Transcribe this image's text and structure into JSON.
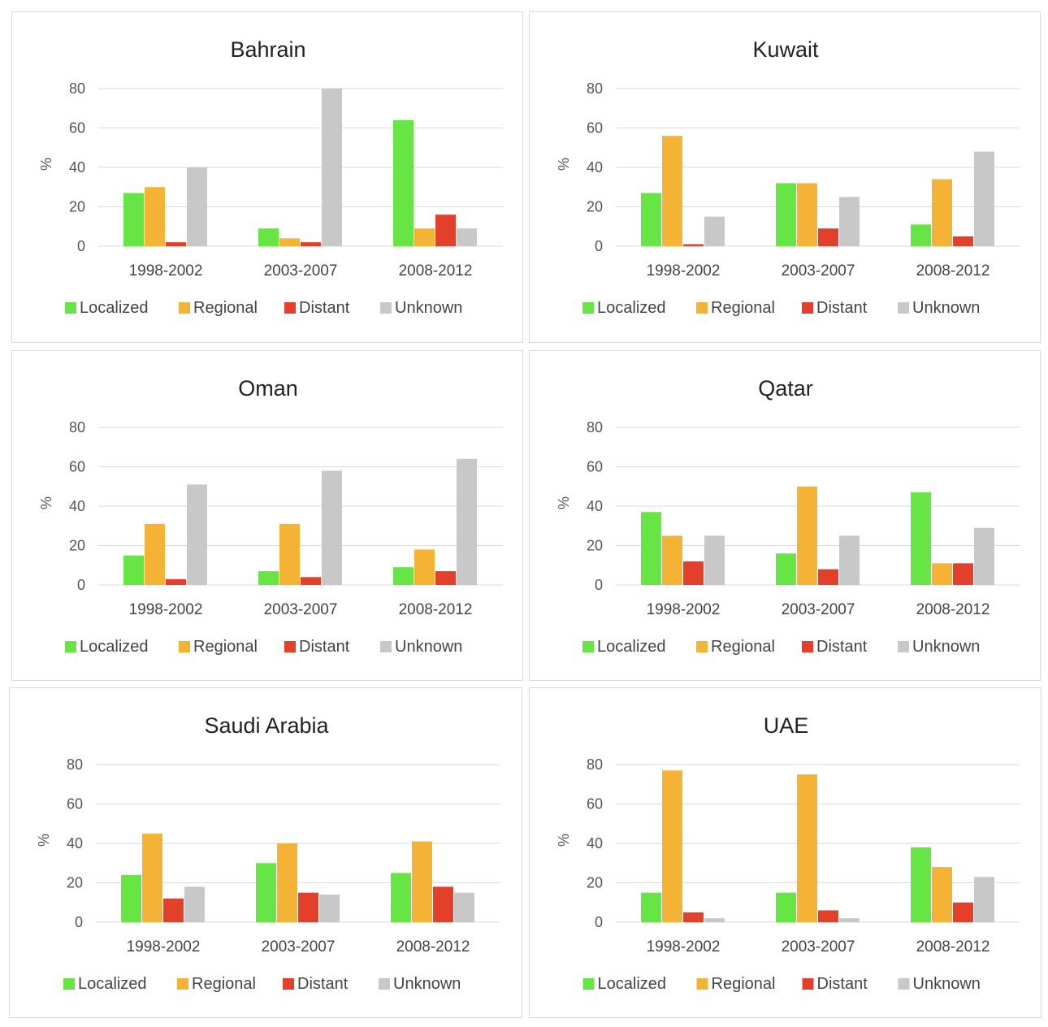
{
  "colors": {
    "Localized": "#66e544",
    "Regional": "#f5b335",
    "Distant": "#e2402a",
    "Unknown": "#c8c8c8"
  },
  "series_names": [
    "Localized",
    "Regional",
    "Distant",
    "Unknown"
  ],
  "chart_data": [
    {
      "type": "bar",
      "title": "Bahrain",
      "ylabel": "%",
      "ylim": [
        0,
        80
      ],
      "yticks": [
        0,
        20,
        40,
        60,
        80
      ],
      "categories": [
        "1998-2002",
        "2003-2007",
        "2008-2012"
      ],
      "series": [
        {
          "name": "Localized",
          "values": [
            27,
            9,
            64
          ]
        },
        {
          "name": "Regional",
          "values": [
            30,
            4,
            9
          ]
        },
        {
          "name": "Distant",
          "values": [
            2,
            2,
            16
          ]
        },
        {
          "name": "Unknown",
          "values": [
            40,
            80,
            9
          ]
        }
      ],
      "grid": true,
      "legend": "bottom"
    },
    {
      "type": "bar",
      "title": "Kuwait",
      "ylabel": "%",
      "ylim": [
        0,
        80
      ],
      "yticks": [
        0,
        20,
        40,
        60,
        80
      ],
      "categories": [
        "1998-2002",
        "2003-2007",
        "2008-2012"
      ],
      "series": [
        {
          "name": "Localized",
          "values": [
            27,
            32,
            11
          ]
        },
        {
          "name": "Regional",
          "values": [
            56,
            32,
            34
          ]
        },
        {
          "name": "Distant",
          "values": [
            1,
            9,
            5
          ]
        },
        {
          "name": "Unknown",
          "values": [
            15,
            25,
            48
          ]
        }
      ],
      "grid": true,
      "legend": "bottom"
    },
    {
      "type": "bar",
      "title": "Oman",
      "ylabel": "%",
      "ylim": [
        0,
        80
      ],
      "yticks": [
        0,
        20,
        40,
        60,
        80
      ],
      "categories": [
        "1998-2002",
        "2003-2007",
        "2008-2012"
      ],
      "series": [
        {
          "name": "Localized",
          "values": [
            15,
            7,
            9
          ]
        },
        {
          "name": "Regional",
          "values": [
            31,
            31,
            18
          ]
        },
        {
          "name": "Distant",
          "values": [
            3,
            4,
            7
          ]
        },
        {
          "name": "Unknown",
          "values": [
            51,
            58,
            64
          ]
        }
      ],
      "grid": true,
      "legend": "bottom"
    },
    {
      "type": "bar",
      "title": "Qatar",
      "ylabel": "%",
      "ylim": [
        0,
        80
      ],
      "yticks": [
        0,
        20,
        40,
        60,
        80
      ],
      "categories": [
        "1998-2002",
        "2003-2007",
        "2008-2012"
      ],
      "series": [
        {
          "name": "Localized",
          "values": [
            37,
            16,
            47
          ]
        },
        {
          "name": "Regional",
          "values": [
            25,
            50,
            11
          ]
        },
        {
          "name": "Distant",
          "values": [
            12,
            8,
            11
          ]
        },
        {
          "name": "Unknown",
          "values": [
            25,
            25,
            29
          ]
        }
      ],
      "grid": true,
      "legend": "bottom"
    },
    {
      "type": "bar",
      "title": "Saudi Arabia",
      "ylabel": "%",
      "ylim": [
        0,
        80
      ],
      "yticks": [
        0,
        20,
        40,
        60,
        80
      ],
      "categories": [
        "1998-2002",
        "2003-2007",
        "2008-2012"
      ],
      "series": [
        {
          "name": "Localized",
          "values": [
            24,
            30,
            25
          ]
        },
        {
          "name": "Regional",
          "values": [
            45,
            40,
            41
          ]
        },
        {
          "name": "Distant",
          "values": [
            12,
            15,
            18
          ]
        },
        {
          "name": "Unknown",
          "values": [
            18,
            14,
            15
          ]
        }
      ],
      "grid": true,
      "legend": "bottom"
    },
    {
      "type": "bar",
      "title": "UAE",
      "ylabel": "%",
      "ylim": [
        0,
        80
      ],
      "yticks": [
        0,
        20,
        40,
        60,
        80
      ],
      "categories": [
        "1998-2002",
        "2003-2007",
        "2008-2012"
      ],
      "series": [
        {
          "name": "Localized",
          "values": [
            15,
            15,
            38
          ]
        },
        {
          "name": "Regional",
          "values": [
            77,
            75,
            28
          ]
        },
        {
          "name": "Distant",
          "values": [
            5,
            6,
            10
          ]
        },
        {
          "name": "Unknown",
          "values": [
            2,
            2,
            23
          ]
        }
      ],
      "grid": true,
      "legend": "bottom"
    }
  ]
}
